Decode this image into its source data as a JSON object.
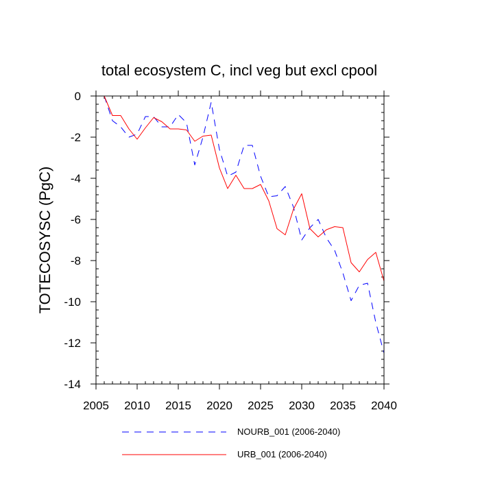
{
  "chart_data": {
    "type": "line",
    "title": "total ecosystem C, incl veg but excl cpool",
    "xlabel": "",
    "ylabel": "TOTECOSYSC  (PgC)",
    "xlim": [
      2005,
      2040
    ],
    "ylim": [
      -14,
      0
    ],
    "xticks": [
      2005,
      2010,
      2015,
      2020,
      2025,
      2030,
      2035,
      2040
    ],
    "yticks": [
      0,
      -2,
      -4,
      -6,
      -8,
      -10,
      -12,
      -14
    ],
    "xtick_labels": [
      "2005",
      "2010",
      "2015",
      "2020",
      "2025",
      "2030",
      "2035",
      "2040"
    ],
    "ytick_labels": [
      "0",
      "-2",
      "-4",
      "-6",
      "-8",
      "-10",
      "-12",
      "-14"
    ],
    "grid": false,
    "legend_position": "bottom",
    "x": [
      2006,
      2007,
      2008,
      2009,
      2010,
      2011,
      2012,
      2013,
      2014,
      2015,
      2016,
      2017,
      2018,
      2019,
      2020,
      2021,
      2022,
      2023,
      2024,
      2025,
      2026,
      2027,
      2028,
      2029,
      2030,
      2031,
      2032,
      2033,
      2034,
      2035,
      2036,
      2037,
      2038,
      2039,
      2040
    ],
    "series": [
      {
        "name": "NOURB_001 (2006-2040)",
        "color": "#0000ff",
        "style": "dashed",
        "values": [
          0,
          -1.2,
          -1.5,
          -2.0,
          -1.85,
          -1.0,
          -1.0,
          -1.5,
          -1.5,
          -0.9,
          -1.3,
          -3.35,
          -2.0,
          -0.3,
          -2.6,
          -3.9,
          -3.7,
          -2.4,
          -2.4,
          -3.9,
          -4.9,
          -4.85,
          -4.4,
          -5.4,
          -7.0,
          -6.4,
          -6.0,
          -6.9,
          -7.5,
          -8.6,
          -9.95,
          -9.2,
          -9.1,
          -11.0,
          -12.5
        ]
      },
      {
        "name": "URB_001 (2006-2040)",
        "color": "#ff0000",
        "style": "solid",
        "values": [
          0,
          -0.95,
          -0.95,
          -1.6,
          -2.1,
          -1.55,
          -1.05,
          -1.25,
          -1.6,
          -1.6,
          -1.65,
          -2.2,
          -1.95,
          -1.9,
          -3.5,
          -4.5,
          -3.85,
          -4.5,
          -4.5,
          -4.3,
          -5.1,
          -6.45,
          -6.75,
          -5.5,
          -4.75,
          -6.45,
          -6.85,
          -6.5,
          -6.35,
          -6.4,
          -8.1,
          -8.55,
          -7.95,
          -7.6,
          -9.0
        ]
      }
    ]
  }
}
